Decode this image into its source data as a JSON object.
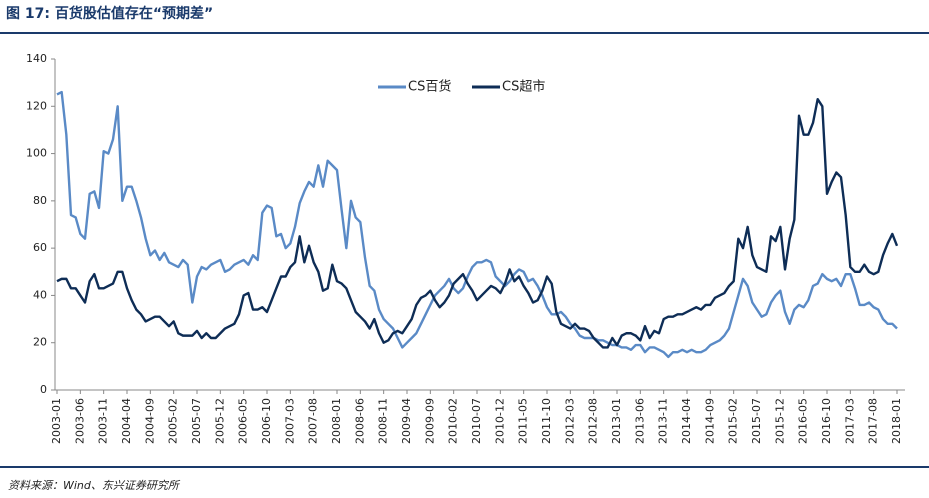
{
  "chart_data": {
    "type": "line",
    "title": "图 17: 百货股估值存在“预期差”",
    "source": "资料来源：Wind、东兴证券研究所",
    "categories": [
      "2003-01",
      null,
      null,
      null,
      null,
      "2003-06",
      null,
      null,
      null,
      null,
      "2003-11",
      null,
      null,
      null,
      null,
      "2004-04",
      null,
      null,
      null,
      null,
      "2004-09",
      null,
      null,
      null,
      null,
      "2005-02",
      null,
      null,
      null,
      null,
      "2005-07",
      null,
      null,
      null,
      null,
      "2005-12",
      null,
      null,
      null,
      null,
      "2006-05",
      null,
      null,
      null,
      null,
      "2006-10",
      null,
      null,
      null,
      null,
      "2007-03",
      null,
      null,
      null,
      null,
      "2007-08",
      null,
      null,
      null,
      null,
      "2008-01",
      null,
      null,
      null,
      null,
      "2008-06",
      null,
      null,
      null,
      null,
      "2008-11",
      null,
      null,
      null,
      null,
      "2009-04",
      null,
      null,
      null,
      null,
      "2009-09",
      null,
      null,
      null,
      null,
      "2010-02",
      null,
      null,
      null,
      null,
      "2010-07",
      null,
      null,
      null,
      null,
      "2010-12",
      null,
      null,
      null,
      null,
      "2011-05",
      null,
      null,
      null,
      null,
      "2011-10",
      null,
      null,
      null,
      null,
      "2012-03",
      null,
      null,
      null,
      null,
      "2012-08",
      null,
      null,
      null,
      null,
      "2013-01",
      null,
      null,
      null,
      null,
      "2013-06",
      null,
      null,
      null,
      null,
      "2013-11",
      null,
      null,
      null,
      null,
      "2014-04",
      null,
      null,
      null,
      null,
      "2014-09",
      null,
      null,
      null,
      null,
      "2015-02",
      null,
      null,
      null,
      null,
      "2015-07",
      null,
      null,
      null,
      null,
      "2015-12",
      null,
      null,
      null,
      null,
      "2016-05",
      null,
      null,
      null,
      null,
      "2016-10",
      null,
      null,
      null,
      null,
      "2017-03",
      null,
      null,
      null,
      null,
      "2017-08",
      null,
      null,
      null,
      null,
      "2018-01"
    ],
    "series": [
      {
        "name": "CS百货",
        "color": "#5a8ac6",
        "values": [
          125,
          126,
          108,
          74,
          73,
          66,
          64,
          83,
          84,
          77,
          101,
          100,
          106,
          120,
          80,
          86,
          86,
          80,
          73,
          64,
          57,
          59,
          55,
          58,
          54,
          53,
          52,
          55,
          53,
          37,
          48,
          52,
          51,
          53,
          54,
          55,
          50,
          51,
          53,
          54,
          55,
          53,
          57,
          55,
          75,
          78,
          77,
          65,
          66,
          60,
          62,
          69,
          79,
          84,
          88,
          86,
          95,
          86,
          97,
          95,
          93,
          76,
          60,
          80,
          73,
          71,
          56,
          44,
          42,
          34,
          30,
          28,
          26,
          22,
          18,
          20,
          22,
          24,
          28,
          32,
          36,
          40,
          42,
          44,
          47,
          43,
          41,
          43,
          48,
          52,
          54,
          54,
          55,
          54,
          48,
          46,
          44,
          46,
          49,
          51,
          50,
          46,
          47,
          44,
          40,
          35,
          32,
          32,
          33,
          31,
          28,
          26,
          23,
          22,
          22,
          22,
          21,
          21,
          20,
          19,
          19,
          18,
          18,
          17,
          19,
          19,
          16,
          18,
          18,
          17,
          16,
          14,
          16,
          16,
          17,
          16,
          17,
          16,
          16,
          17,
          19,
          20,
          21,
          23,
          26,
          33,
          40,
          47,
          44,
          37,
          34,
          31,
          32,
          37,
          40,
          42,
          33,
          28,
          34,
          36,
          35,
          38,
          44,
          45,
          49,
          47,
          46,
          47,
          44,
          49,
          49,
          43,
          36,
          36,
          37,
          35,
          34,
          30,
          28,
          28,
          26
        ]
      },
      {
        "name": "CS超市",
        "color": "#0e2d56",
        "values": [
          46,
          47,
          47,
          43,
          43,
          40,
          37,
          46,
          49,
          43,
          43,
          44,
          45,
          50,
          50,
          43,
          38,
          34,
          32,
          29,
          30,
          31,
          31,
          29,
          27,
          29,
          24,
          23,
          23,
          23,
          25,
          22,
          24,
          22,
          22,
          24,
          26,
          27,
          28,
          32,
          40,
          41,
          34,
          34,
          35,
          33,
          38,
          43,
          48,
          48,
          52,
          54,
          65,
          54,
          61,
          54,
          50,
          42,
          43,
          53,
          46,
          45,
          43,
          38,
          33,
          31,
          29,
          26,
          30,
          24,
          20,
          21,
          24,
          25,
          24,
          27,
          30,
          36,
          39,
          40,
          42,
          38,
          35,
          37,
          40,
          45,
          47,
          49,
          45,
          42,
          38,
          40,
          42,
          44,
          43,
          41,
          45,
          51,
          46,
          48,
          44,
          41,
          37,
          38,
          42,
          48,
          45,
          33,
          28,
          27,
          26,
          28,
          26,
          26,
          25,
          22,
          20,
          18,
          18,
          22,
          19,
          23,
          24,
          24,
          23,
          21,
          27,
          22,
          25,
          24,
          30,
          31,
          31,
          32,
          32,
          33,
          34,
          35,
          34,
          36,
          36,
          39,
          40,
          41,
          44,
          46,
          64,
          60,
          69,
          57,
          52,
          51,
          50,
          65,
          63,
          69,
          51,
          64,
          72,
          116,
          108,
          108,
          113,
          123,
          120,
          83,
          88,
          92,
          90,
          74,
          52,
          50,
          50,
          53,
          50,
          49,
          50,
          57,
          62,
          66,
          61
        ]
      }
    ],
    "ylim": [
      0,
      140
    ],
    "yticks": [
      0,
      20,
      40,
      60,
      80,
      100,
      120,
      140
    ],
    "grid": false,
    "legend": "top"
  }
}
